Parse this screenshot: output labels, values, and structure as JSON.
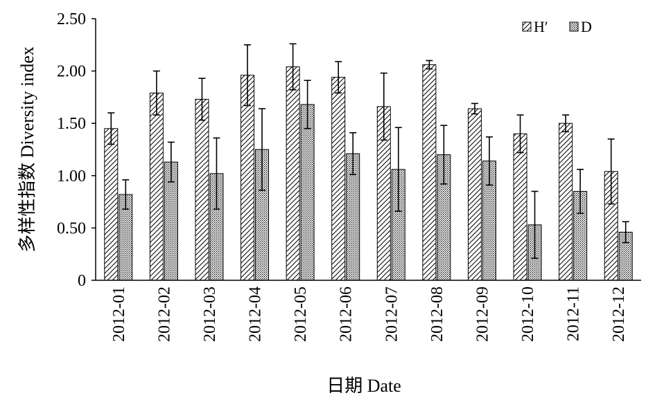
{
  "chart_data": {
    "type": "bar",
    "title": "",
    "xlabel": "日期 Date",
    "ylabel": "多样性指数 Diversity index",
    "ylim": [
      0,
      2.5
    ],
    "yticks": [
      "0",
      "0.50",
      "1.00",
      "1.50",
      "2.00",
      "2.50"
    ],
    "grid": false,
    "legend_position": "top-right",
    "categories": [
      "2012-01",
      "2012-02",
      "2012-03",
      "2012-04",
      "2012-05",
      "2012-06",
      "2012-07",
      "2012-08",
      "2012-09",
      "2012-10",
      "2012-11",
      "2012-12"
    ],
    "series": [
      {
        "name": "H′",
        "pattern": "diagonal-hatch",
        "values": [
          1.45,
          1.79,
          1.73,
          1.96,
          2.04,
          1.94,
          1.66,
          2.06,
          1.64,
          1.4,
          1.5,
          1.04
        ],
        "errors": [
          0.15,
          0.21,
          0.2,
          0.29,
          0.22,
          0.15,
          0.32,
          0.04,
          0.05,
          0.18,
          0.08,
          0.31
        ]
      },
      {
        "name": "D",
        "pattern": "dots",
        "values": [
          0.82,
          1.13,
          1.02,
          1.25,
          1.68,
          1.21,
          1.06,
          1.2,
          1.14,
          0.53,
          0.85,
          0.46
        ],
        "errors": [
          0.14,
          0.19,
          0.34,
          0.39,
          0.23,
          0.2,
          0.4,
          0.28,
          0.23,
          0.32,
          0.21,
          0.1
        ]
      }
    ]
  }
}
